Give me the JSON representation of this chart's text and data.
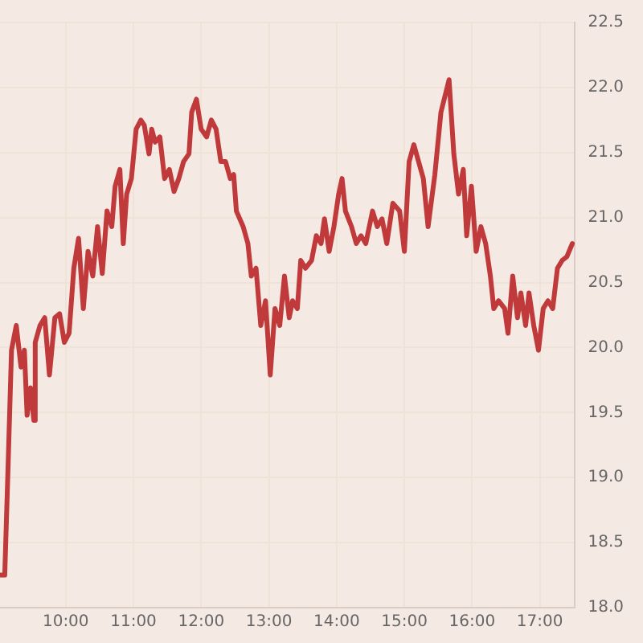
{
  "chart_data": {
    "type": "line",
    "grid": true,
    "marker": "none",
    "line_style": "solid",
    "xlim": [
      9.03,
      17.52
    ],
    "xticks": [
      {
        "value": 10,
        "label": "10:00"
      },
      {
        "value": 11,
        "label": "11:00"
      },
      {
        "value": 12,
        "label": "12:00"
      },
      {
        "value": 13,
        "label": "13:00"
      },
      {
        "value": 14,
        "label": "14:00"
      },
      {
        "value": 15,
        "label": "15:00"
      },
      {
        "value": 16,
        "label": "16:00"
      },
      {
        "value": 17,
        "label": "17:00"
      }
    ],
    "ylim": [
      18,
      22.5
    ],
    "yticks": [
      {
        "value": 18,
        "label": "18.0"
      },
      {
        "value": 18.5,
        "label": "18.5"
      },
      {
        "value": 19,
        "label": "19.0"
      },
      {
        "value": 19.5,
        "label": "19.5"
      },
      {
        "value": 20,
        "label": "20.0"
      },
      {
        "value": 20.5,
        "label": "20.5"
      },
      {
        "value": 21,
        "label": "21.0"
      },
      {
        "value": 21.5,
        "label": "21.5"
      },
      {
        "value": 22,
        "label": "22.0"
      },
      {
        "value": 22.5,
        "label": "22.5"
      }
    ],
    "x": [
      9.03,
      9.1,
      9.15,
      9.2,
      9.27,
      9.34,
      9.39,
      9.43,
      9.48,
      9.53,
      9.55,
      9.62,
      9.69,
      9.76,
      9.84,
      9.91,
      9.98,
      10.05,
      10.12,
      10.19,
      10.26,
      10.33,
      10.4,
      10.47,
      10.54,
      10.61,
      10.68,
      10.73,
      10.8,
      10.85,
      10.9,
      10.97,
      11.04,
      11.11,
      11.16,
      11.23,
      11.27,
      11.32,
      11.39,
      11.46,
      11.53,
      11.6,
      11.67,
      11.74,
      11.82,
      11.86,
      11.93,
      12.0,
      12.08,
      12.15,
      12.22,
      12.29,
      12.36,
      12.43,
      12.48,
      12.52,
      12.62,
      12.69,
      12.74,
      12.81,
      12.88,
      12.95,
      13.02,
      13.09,
      13.16,
      13.23,
      13.3,
      13.35,
      13.42,
      13.47,
      13.54,
      13.63,
      13.7,
      13.77,
      13.82,
      13.89,
      13.96,
      14.03,
      14.08,
      14.13,
      14.22,
      14.29,
      14.36,
      14.43,
      14.53,
      14.6,
      14.67,
      14.74,
      14.83,
      14.93,
      15.0,
      15.07,
      15.14,
      15.21,
      15.28,
      15.35,
      15.45,
      15.54,
      15.66,
      15.73,
      15.8,
      15.87,
      15.92,
      15.99,
      16.06,
      16.13,
      16.2,
      16.27,
      16.32,
      16.39,
      16.48,
      16.53,
      16.6,
      16.67,
      16.72,
      16.79,
      16.84,
      16.91,
      16.98,
      17.05,
      17.12,
      17.19,
      17.26,
      17.33,
      17.4,
      17.48
    ],
    "series": [
      {
        "color": "#c0393b",
        "values": [
          18.25,
          18.25,
          19.1,
          19.98,
          20.17,
          19.85,
          19.98,
          19.48,
          19.69,
          19.44,
          20.04,
          20.17,
          20.23,
          19.79,
          20.23,
          20.26,
          20.04,
          20.11,
          20.61,
          20.84,
          20.3,
          20.74,
          20.55,
          20.93,
          20.57,
          21.05,
          20.93,
          21.24,
          21.37,
          20.8,
          21.18,
          21.3,
          21.68,
          21.75,
          21.71,
          21.49,
          21.68,
          21.58,
          21.62,
          21.3,
          21.37,
          21.2,
          21.3,
          21.43,
          21.49,
          21.81,
          21.91,
          21.68,
          21.62,
          21.75,
          21.68,
          21.43,
          21.43,
          21.3,
          21.33,
          21.05,
          20.93,
          20.8,
          20.55,
          20.61,
          20.17,
          20.36,
          19.79,
          20.3,
          20.17,
          20.55,
          20.23,
          20.36,
          20.3,
          20.67,
          20.61,
          20.67,
          20.86,
          20.8,
          20.99,
          20.74,
          20.93,
          21.18,
          21.3,
          21.05,
          20.93,
          20.8,
          20.86,
          20.8,
          21.05,
          20.93,
          20.99,
          20.8,
          21.11,
          21.05,
          20.74,
          21.43,
          21.56,
          21.43,
          21.3,
          20.93,
          21.33,
          21.81,
          22.06,
          21.49,
          21.18,
          21.37,
          20.86,
          21.24,
          20.74,
          20.93,
          20.8,
          20.55,
          20.3,
          20.36,
          20.3,
          20.11,
          20.55,
          20.23,
          20.42,
          20.17,
          20.42,
          20.17,
          19.98,
          20.3,
          20.36,
          20.3,
          20.61,
          20.67,
          20.7,
          20.8
        ]
      }
    ]
  }
}
